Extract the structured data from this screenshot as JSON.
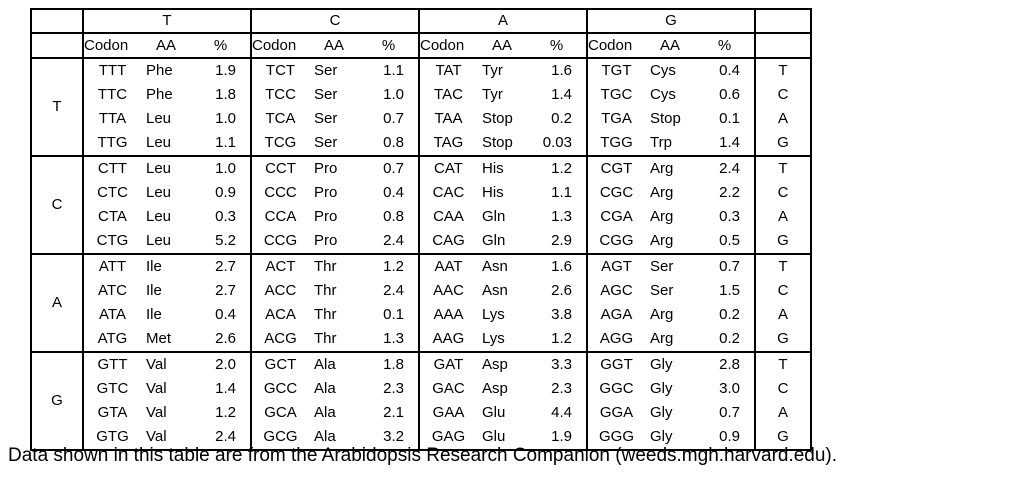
{
  "table": {
    "column_groups": [
      "T",
      "C",
      "A",
      "G"
    ],
    "sub_headers": [
      "Codon",
      "AA",
      "%"
    ],
    "row_groups": [
      "T",
      "C",
      "A",
      "G"
    ],
    "rows": [
      {
        "third": "T",
        "cells": [
          {
            "codon": "TTT",
            "aa": "Phe",
            "pct": "1.9"
          },
          {
            "codon": "TCT",
            "aa": "Ser",
            "pct": "1.1"
          },
          {
            "codon": "TAT",
            "aa": "Tyr",
            "pct": "1.6"
          },
          {
            "codon": "TGT",
            "aa": "Cys",
            "pct": "0.4"
          }
        ]
      },
      {
        "third": "C",
        "cells": [
          {
            "codon": "TTC",
            "aa": "Phe",
            "pct": "1.8"
          },
          {
            "codon": "TCC",
            "aa": "Ser",
            "pct": "1.0"
          },
          {
            "codon": "TAC",
            "aa": "Tyr",
            "pct": "1.4"
          },
          {
            "codon": "TGC",
            "aa": "Cys",
            "pct": "0.6"
          }
        ]
      },
      {
        "third": "A",
        "cells": [
          {
            "codon": "TTA",
            "aa": "Leu",
            "pct": "1.0"
          },
          {
            "codon": "TCA",
            "aa": "Ser",
            "pct": "0.7"
          },
          {
            "codon": "TAA",
            "aa": "Stop",
            "pct": "0.2"
          },
          {
            "codon": "TGA",
            "aa": "Stop",
            "pct": "0.1"
          }
        ]
      },
      {
        "third": "G",
        "cells": [
          {
            "codon": "TTG",
            "aa": "Leu",
            "pct": "1.1"
          },
          {
            "codon": "TCG",
            "aa": "Ser",
            "pct": "0.8"
          },
          {
            "codon": "TAG",
            "aa": "Stop",
            "pct": "0.03"
          },
          {
            "codon": "TGG",
            "aa": "Trp",
            "pct": "1.4"
          }
        ]
      },
      {
        "third": "T",
        "cells": [
          {
            "codon": "CTT",
            "aa": "Leu",
            "pct": "1.0"
          },
          {
            "codon": "CCT",
            "aa": "Pro",
            "pct": "0.7"
          },
          {
            "codon": "CAT",
            "aa": "His",
            "pct": "1.2"
          },
          {
            "codon": "CGT",
            "aa": "Arg",
            "pct": "2.4"
          }
        ]
      },
      {
        "third": "C",
        "cells": [
          {
            "codon": "CTC",
            "aa": "Leu",
            "pct": "0.9"
          },
          {
            "codon": "CCC",
            "aa": "Pro",
            "pct": "0.4"
          },
          {
            "codon": "CAC",
            "aa": "His",
            "pct": "1.1"
          },
          {
            "codon": "CGC",
            "aa": "Arg",
            "pct": "2.2"
          }
        ]
      },
      {
        "third": "A",
        "cells": [
          {
            "codon": "CTA",
            "aa": "Leu",
            "pct": "0.3"
          },
          {
            "codon": "CCA",
            "aa": "Pro",
            "pct": "0.8"
          },
          {
            "codon": "CAA",
            "aa": "Gln",
            "pct": "1.3"
          },
          {
            "codon": "CGA",
            "aa": "Arg",
            "pct": "0.3"
          }
        ]
      },
      {
        "third": "G",
        "cells": [
          {
            "codon": "CTG",
            "aa": "Leu",
            "pct": "5.2"
          },
          {
            "codon": "CCG",
            "aa": "Pro",
            "pct": "2.4"
          },
          {
            "codon": "CAG",
            "aa": "Gln",
            "pct": "2.9"
          },
          {
            "codon": "CGG",
            "aa": "Arg",
            "pct": "0.5"
          }
        ]
      },
      {
        "third": "T",
        "cells": [
          {
            "codon": "ATT",
            "aa": "Ile",
            "pct": "2.7"
          },
          {
            "codon": "ACT",
            "aa": "Thr",
            "pct": "1.2"
          },
          {
            "codon": "AAT",
            "aa": "Asn",
            "pct": "1.6"
          },
          {
            "codon": "AGT",
            "aa": "Ser",
            "pct": "0.7"
          }
        ]
      },
      {
        "third": "C",
        "cells": [
          {
            "codon": "ATC",
            "aa": "Ile",
            "pct": "2.7"
          },
          {
            "codon": "ACC",
            "aa": "Thr",
            "pct": "2.4"
          },
          {
            "codon": "AAC",
            "aa": "Asn",
            "pct": "2.6"
          },
          {
            "codon": "AGC",
            "aa": "Ser",
            "pct": "1.5"
          }
        ]
      },
      {
        "third": "A",
        "cells": [
          {
            "codon": "ATA",
            "aa": "Ile",
            "pct": "0.4"
          },
          {
            "codon": "ACA",
            "aa": "Thr",
            "pct": "0.1"
          },
          {
            "codon": "AAA",
            "aa": "Lys",
            "pct": "3.8"
          },
          {
            "codon": "AGA",
            "aa": "Arg",
            "pct": "0.2"
          }
        ]
      },
      {
        "third": "G",
        "cells": [
          {
            "codon": "ATG",
            "aa": "Met",
            "pct": "2.6"
          },
          {
            "codon": "ACG",
            "aa": "Thr",
            "pct": "1.3"
          },
          {
            "codon": "AAG",
            "aa": "Lys",
            "pct": "1.2"
          },
          {
            "codon": "AGG",
            "aa": "Arg",
            "pct": "0.2"
          }
        ]
      },
      {
        "third": "T",
        "cells": [
          {
            "codon": "GTT",
            "aa": "Val",
            "pct": "2.0"
          },
          {
            "codon": "GCT",
            "aa": "Ala",
            "pct": "1.8"
          },
          {
            "codon": "GAT",
            "aa": "Asp",
            "pct": "3.3"
          },
          {
            "codon": "GGT",
            "aa": "Gly",
            "pct": "2.8"
          }
        ]
      },
      {
        "third": "C",
        "cells": [
          {
            "codon": "GTC",
            "aa": "Val",
            "pct": "1.4"
          },
          {
            "codon": "GCC",
            "aa": "Ala",
            "pct": "2.3"
          },
          {
            "codon": "GAC",
            "aa": "Asp",
            "pct": "2.3"
          },
          {
            "codon": "GGC",
            "aa": "Gly",
            "pct": "3.0"
          }
        ]
      },
      {
        "third": "A",
        "cells": [
          {
            "codon": "GTA",
            "aa": "Val",
            "pct": "1.2"
          },
          {
            "codon": "GCA",
            "aa": "Ala",
            "pct": "2.1"
          },
          {
            "codon": "GAA",
            "aa": "Glu",
            "pct": "4.4"
          },
          {
            "codon": "GGA",
            "aa": "Gly",
            "pct": "0.7"
          }
        ]
      },
      {
        "third": "G",
        "cells": [
          {
            "codon": "GTG",
            "aa": "Val",
            "pct": "2.4"
          },
          {
            "codon": "GCG",
            "aa": "Ala",
            "pct": "3.2"
          },
          {
            "codon": "GAG",
            "aa": "Glu",
            "pct": "1.9"
          },
          {
            "codon": "GGG",
            "aa": "Gly",
            "pct": "0.9"
          }
        ]
      }
    ]
  },
  "caption": "Data shown in this table are from the Arabidopsis Research Companion (weeds.mgh.harvard.edu)."
}
